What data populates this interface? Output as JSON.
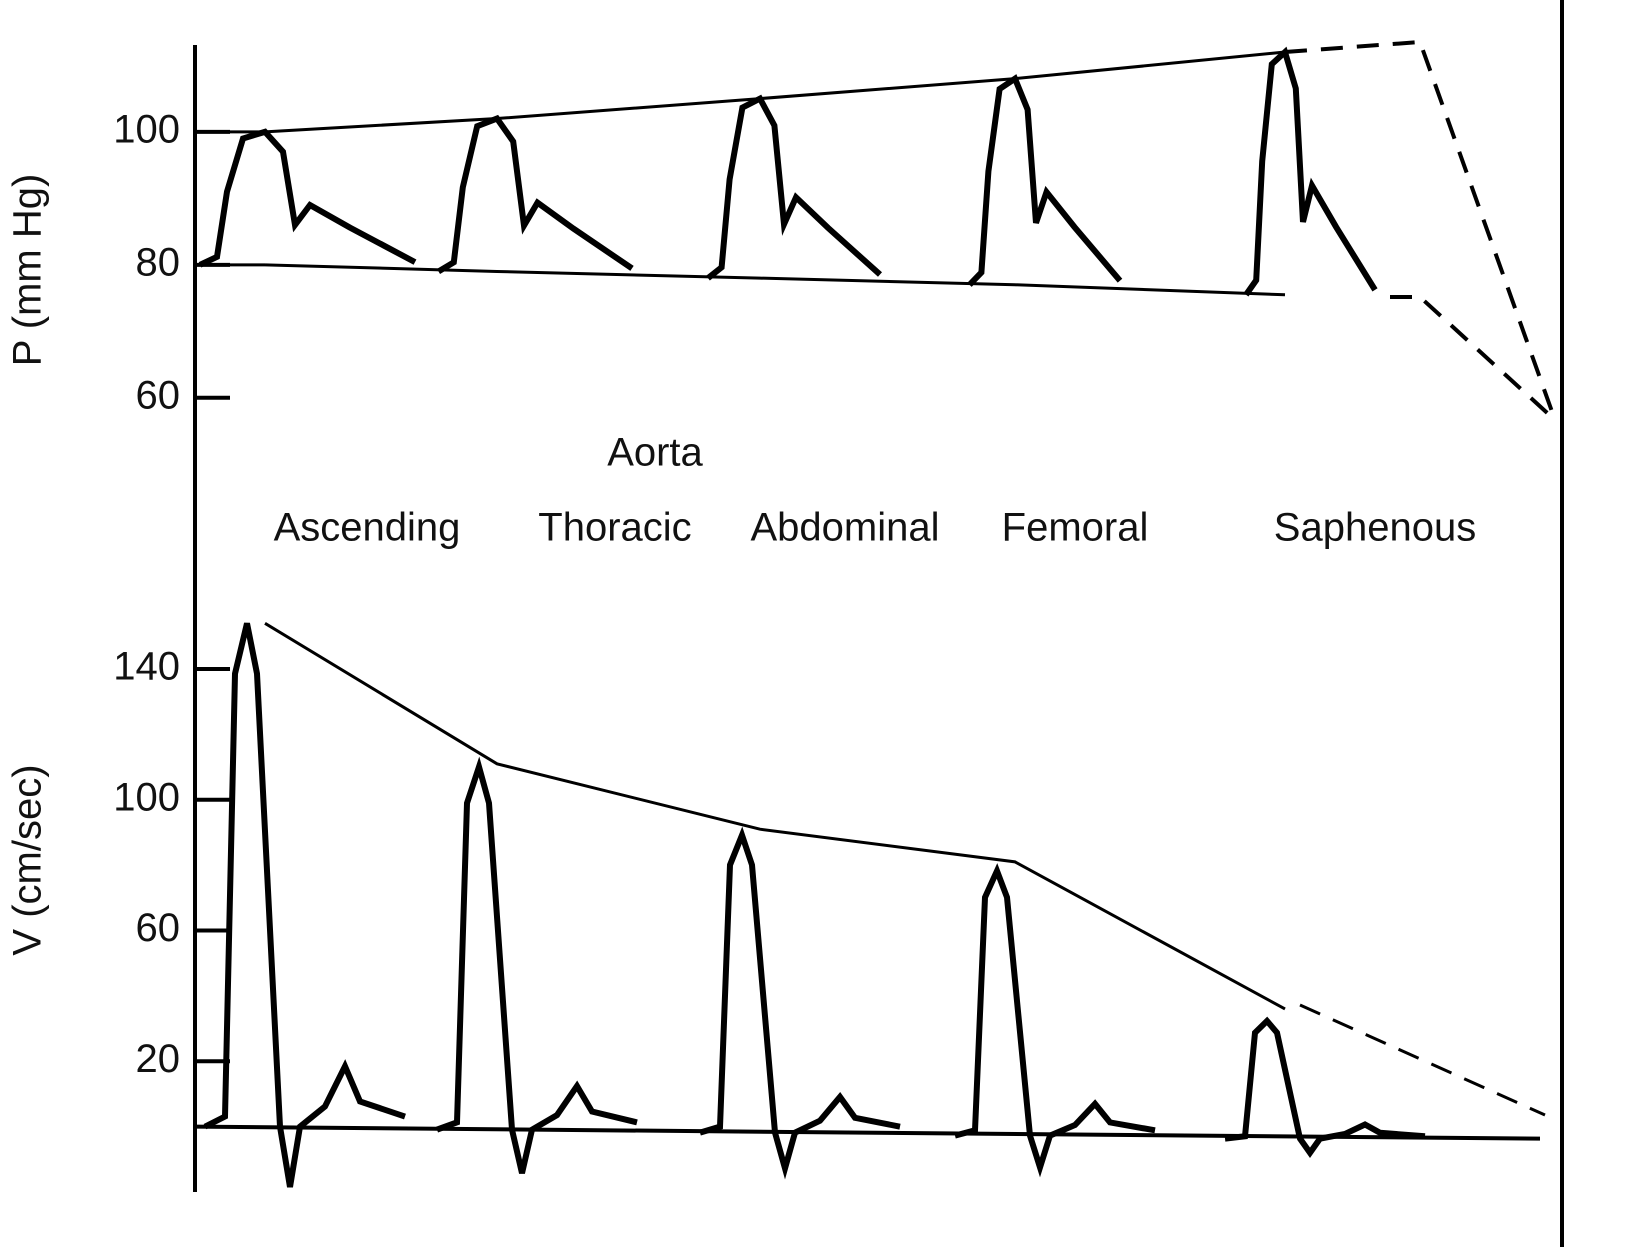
{
  "chart_data": [
    {
      "type": "line",
      "ylabel": "P (mm Hg)",
      "color": "#000000",
      "ylim": [
        54,
        113
      ],
      "yticks": [
        60,
        80,
        100
      ],
      "series": [
        {
          "values": [
            100,
            102,
            105,
            108,
            112
          ]
        },
        {
          "values": [
            80,
            79,
            78,
            77,
            75.5
          ]
        }
      ]
    },
    {
      "type": "line",
      "ylabel": "V (cm/sec)",
      "color": "#000000",
      "ylim": [
        -20,
        170
      ],
      "yticks": [
        20,
        60,
        100,
        140
      ],
      "series": [
        {
          "values": [
            154,
            111,
            91,
            81,
            36
          ]
        }
      ]
    }
  ],
  "annotations": {
    "group": "Aorta",
    "sites": [
      "Ascending",
      "Thoracic",
      "Abdominal",
      "Femoral",
      "Saphenous"
    ]
  }
}
